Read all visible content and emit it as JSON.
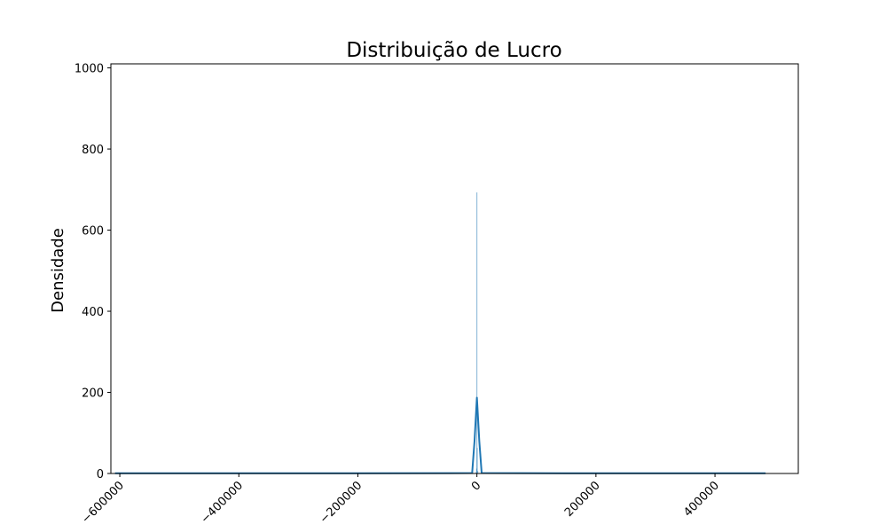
{
  "chart_data": {
    "type": "histogram",
    "title": "Distribuição de Lucro",
    "xlabel": "",
    "ylabel": "Densidade",
    "xlim": [
      -615000,
      540000
    ],
    "ylim": [
      0,
      1010
    ],
    "x_ticks": [
      -600000,
      -400000,
      -200000,
      0,
      200000,
      400000
    ],
    "x_tick_labels": [
      "−600000",
      "−400000",
      "−200000",
      "0",
      "200000",
      "400000"
    ],
    "y_ticks": [
      0,
      200,
      400,
      600,
      800,
      1000
    ],
    "y_tick_labels": [
      "0",
      "200",
      "400",
      "600",
      "800",
      "1000"
    ],
    "x_tick_rotation": 45,
    "grid": false,
    "histogram": {
      "color": "#1f77b4",
      "bars": [
        {
          "x": 0,
          "y": 693
        },
        {
          "x": 500,
          "y": 63
        },
        {
          "x": -500,
          "y": 12
        },
        {
          "x": 1500,
          "y": 6
        },
        {
          "x": -1500,
          "y": 3
        }
      ]
    },
    "kde": {
      "color": "#1f77b4",
      "x": [
        -608000,
        -200000,
        -8000,
        -4000,
        0,
        4000,
        8000,
        200000,
        485000
      ],
      "y": [
        0.5,
        0.5,
        1,
        80,
        187,
        80,
        1,
        0.5,
        0.5
      ]
    }
  }
}
